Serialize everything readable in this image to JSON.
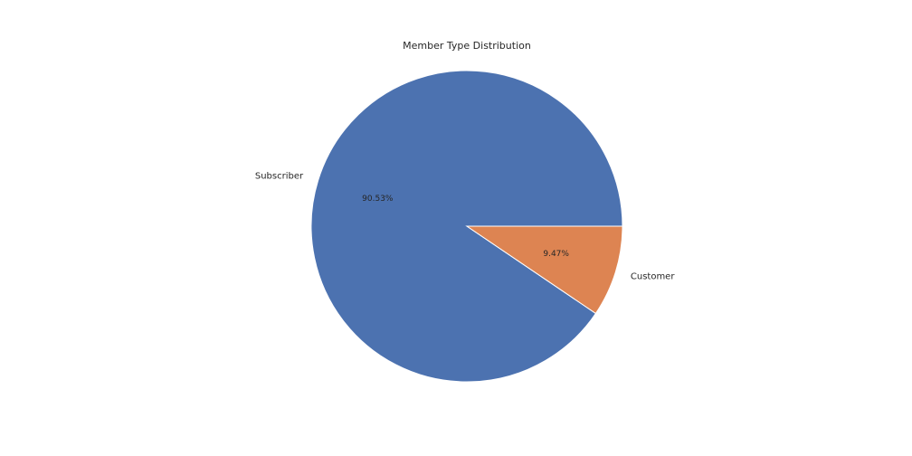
{
  "chart_data": {
    "type": "pie",
    "title": "Member Type Distribution",
    "slices": [
      {
        "label": "Subscriber",
        "value": 90.53,
        "pct_label": "90.53%",
        "color": "#4c72b0"
      },
      {
        "label": "Customer",
        "value": 9.47,
        "pct_label": "9.47%",
        "color": "#dd8452"
      }
    ],
    "start_angle_deg": 0,
    "direction": "counterclockwise",
    "wedge_edge_color": "#ffffff"
  }
}
